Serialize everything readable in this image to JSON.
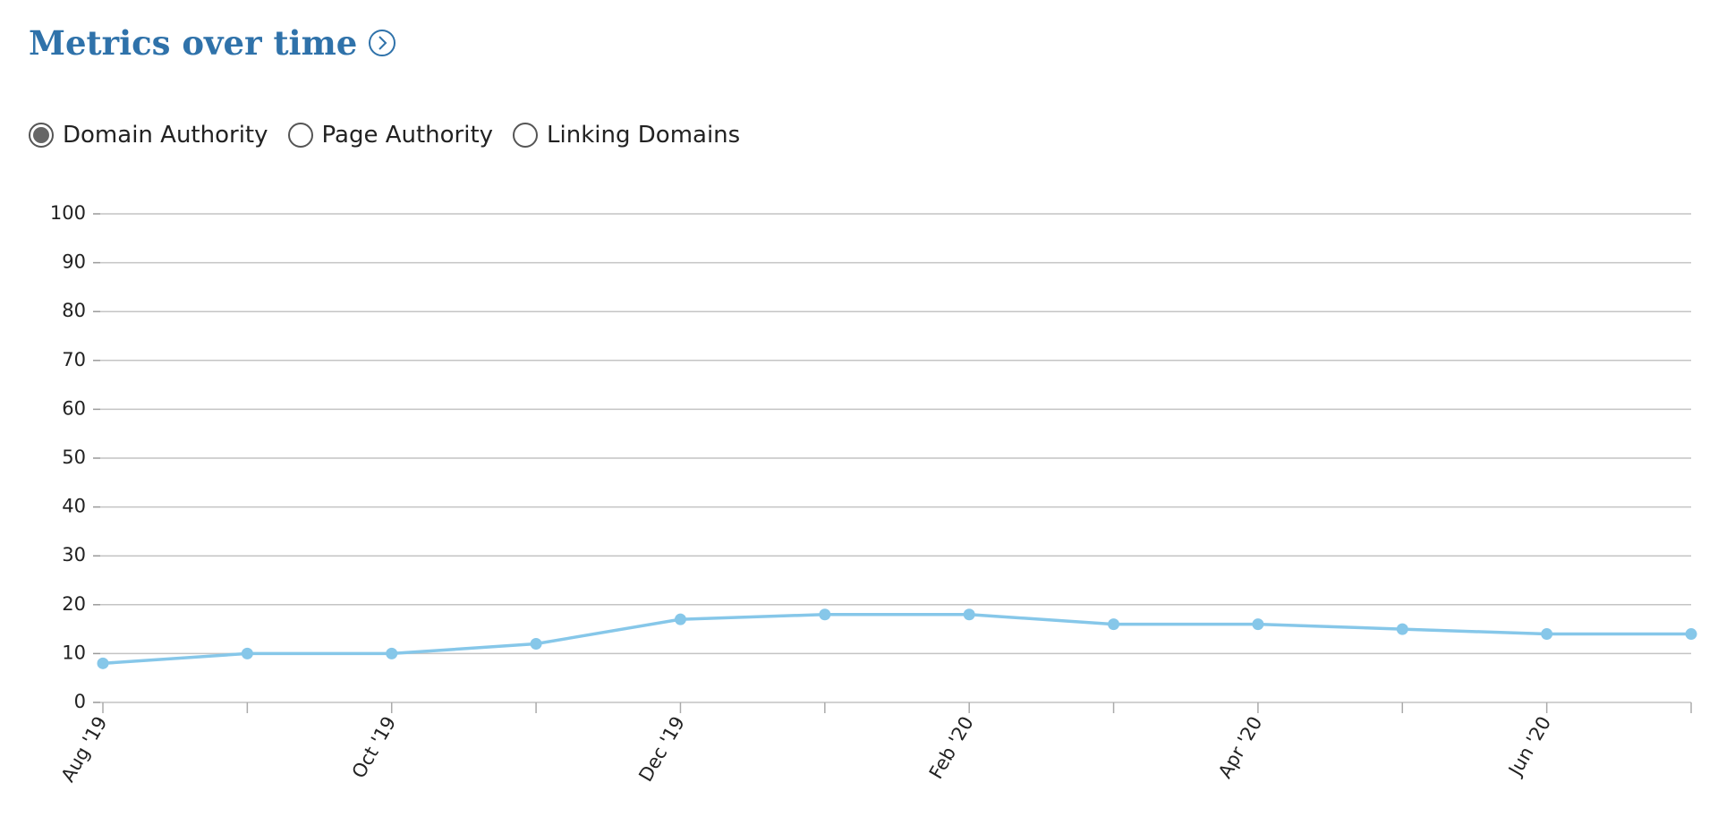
{
  "header": {
    "title": "Metrics over time"
  },
  "metric_options": [
    "Domain Authority",
    "Page Authority",
    "Linking Domains"
  ],
  "selected_option": 0,
  "chart_data": {
    "type": "line",
    "categories": [
      "Aug '19",
      null,
      "Oct '19",
      null,
      "Dec '19",
      null,
      "Feb '20",
      null,
      "Apr '20",
      null,
      "Jun '20",
      null
    ],
    "series": [
      {
        "name": "Domain Authority",
        "color": "#86c7e9",
        "values": [
          8,
          10,
          10,
          12,
          17,
          18,
          18,
          16,
          16,
          15,
          14,
          14
        ]
      }
    ],
    "ylim": [
      0,
      100
    ],
    "yticks": [
      0,
      10,
      20,
      30,
      40,
      50,
      60,
      70,
      80,
      90,
      100
    ],
    "grid": true
  }
}
